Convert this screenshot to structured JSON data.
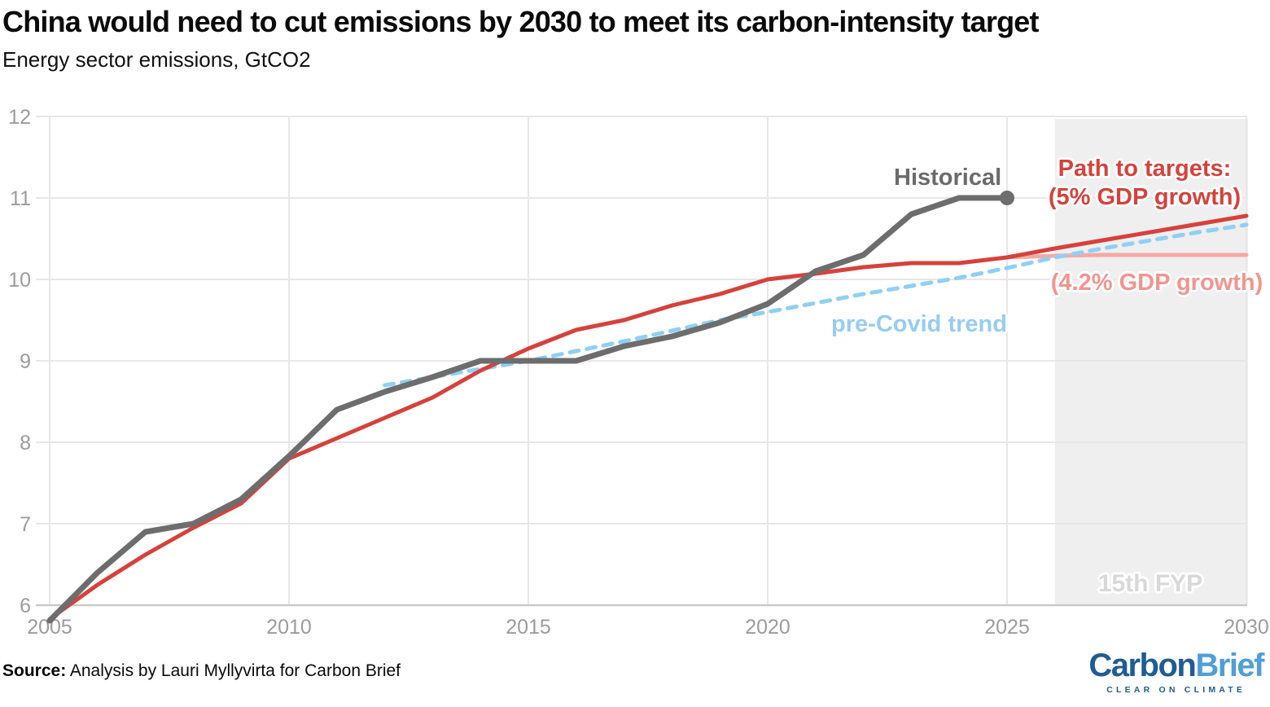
{
  "header": {
    "title": "China would need to cut emissions by 2030 to meet its carbon-intensity target",
    "subtitle": "Energy sector emissions, GtCO2"
  },
  "footer": {
    "source_label": "Source:",
    "source_text": "Analysis by Lauri Myllyvirta for Carbon Brief",
    "logo": {
      "part1": "Carbon",
      "part2": "Brief",
      "tagline": "CLEAR ON CLIMATE",
      "color_dark_blue": "#1f5c95",
      "color_light_blue": "#4f9fd9"
    }
  },
  "chart_data": {
    "type": "line",
    "title": "China would need to cut emissions by 2030 to meet its carbon-intensity target",
    "ylabel": "Energy sector emissions, GtCO2",
    "xlabel": "",
    "x_range": [
      2005,
      2030
    ],
    "y_range": [
      6,
      12
    ],
    "x_ticks": [
      2005,
      2010,
      2015,
      2020,
      2025,
      2030
    ],
    "y_ticks": [
      6,
      7,
      8,
      9,
      10,
      11,
      12
    ],
    "grid": true,
    "grid_color": "#e7e7e7",
    "axis_color": "#c9c9c9",
    "tick_color": "#9c9c9c",
    "shaded_region": {
      "label": "15th FYP",
      "x_start": 2026,
      "x_end": 2030,
      "color": "#efefef"
    },
    "annotations": {
      "historical": "Historical",
      "path_to_targets_line1": "Path to targets:",
      "path_to_targets_line2": "(5% GDP growth)",
      "gdp42": "(4.2% GDP growth)",
      "precovid": "pre-Covid trend",
      "fyp": "15th FYP"
    },
    "series": [
      {
        "name": "(4.2% GDP growth)",
        "color": "#f5a9a4",
        "width": 5,
        "dash": null,
        "start_x": 2025,
        "values": [
          10.27,
          10.29,
          10.3,
          10.3,
          10.3,
          10.3
        ]
      },
      {
        "name": "pre-Covid trend",
        "color": "#8fd0f3",
        "width": 5,
        "dash": "11 10",
        "start_x": 2012,
        "values": [
          8.7,
          8.8,
          8.9,
          9.0,
          9.12,
          9.24,
          9.37,
          9.5,
          9.6,
          9.71,
          9.82,
          9.92,
          10.02,
          10.14,
          10.27,
          10.38,
          10.48,
          10.58,
          10.67
        ]
      },
      {
        "name": "Path to targets: (5% GDP growth)",
        "color": "#d6423b",
        "width": 5,
        "dash": null,
        "start_x": 2005,
        "values": [
          5.83,
          6.25,
          6.62,
          6.95,
          7.25,
          7.8,
          8.05,
          8.3,
          8.55,
          8.88,
          9.15,
          9.38,
          9.5,
          9.68,
          9.82,
          10.0,
          10.07,
          10.15,
          10.2,
          10.2,
          10.27,
          10.38,
          10.48,
          10.58,
          10.68,
          10.78
        ]
      },
      {
        "name": "Historical",
        "color": "#6d6d6d",
        "width": 7,
        "dash": null,
        "start_x": 2005,
        "end_dot": true,
        "values": [
          5.81,
          6.4,
          6.9,
          7.0,
          7.3,
          7.83,
          8.4,
          8.62,
          8.8,
          9.0,
          9.0,
          9.0,
          9.18,
          9.3,
          9.47,
          9.7,
          10.1,
          10.3,
          10.8,
          11.0,
          11.0
        ]
      }
    ]
  }
}
